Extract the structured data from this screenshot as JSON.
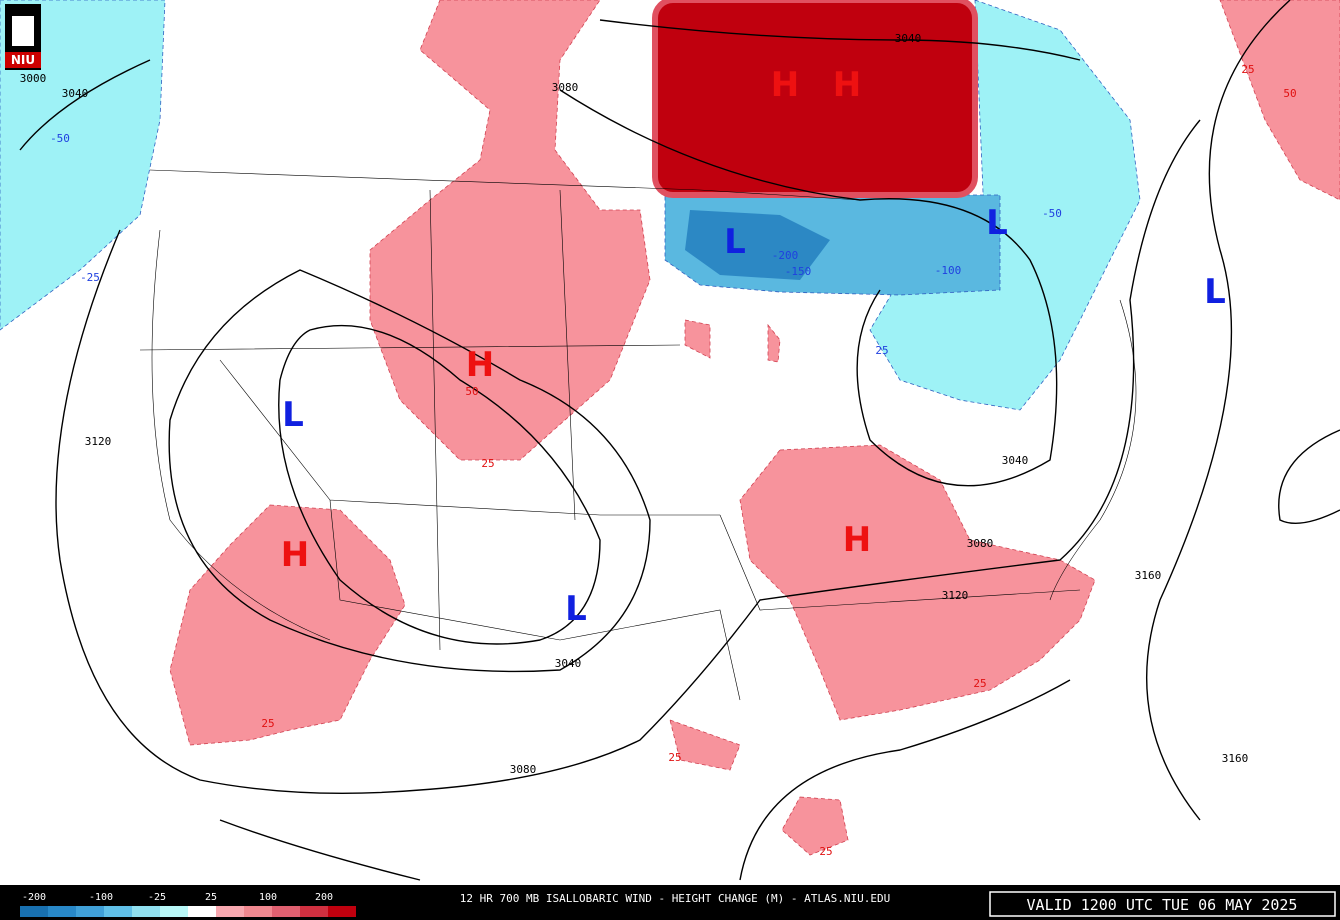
{
  "logo": "NIU",
  "footer": {
    "title": "12 HR 700 MB ISALLOBARIC WIND - HEIGHT CHANGE (M) - ATLAS.NIU.EDU",
    "valid": "VALID 1200 UTC TUE 06 MAY 2025"
  },
  "legend": {
    "labels": [
      "-200",
      "-100",
      "-25",
      "25",
      "100",
      "200"
    ]
  },
  "centers": [
    "H",
    "H",
    "H",
    "H",
    "H",
    "L",
    "L",
    "L",
    "L",
    "L"
  ],
  "height_labels": [
    "3000",
    "3040",
    "3080",
    "3040",
    "3120",
    "3040",
    "3080",
    "3120",
    "3160",
    "3040",
    "3080",
    "3160"
  ],
  "change_labels": [
    "-50",
    "-25",
    "-50",
    "25",
    "50",
    "-200",
    "-150",
    "-100",
    "25",
    "50",
    "25",
    "25",
    "25",
    "25",
    "25"
  ]
}
